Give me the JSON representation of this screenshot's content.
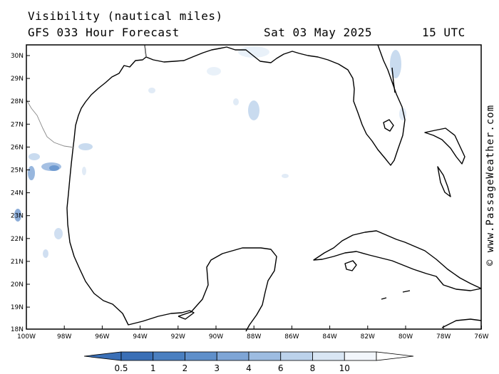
{
  "header": {
    "variable": "Visibility (nautical miles)",
    "forecast": "GFS 033 Hour Forecast",
    "date": "Sat 03 May 2025",
    "time": "15 UTC"
  },
  "credit": "© www.PassageWeather.com",
  "axes": {
    "lat_labels": [
      "30N",
      "29N",
      "28N",
      "27N",
      "26N",
      "25N",
      "24N",
      "23N",
      "22N",
      "21N",
      "20N",
      "19N",
      "18N"
    ],
    "lon_labels": [
      "100W",
      "98W",
      "96W",
      "94W",
      "92W",
      "90W",
      "88W",
      "86W",
      "84W",
      "82W",
      "80W",
      "78W",
      "76W"
    ]
  },
  "colorbar": {
    "labels": [
      "0.5",
      "1",
      "2",
      "3",
      "4",
      "6",
      "8",
      "10"
    ],
    "colors": [
      "#3a6fb6",
      "#4a7fc0",
      "#5f8fca",
      "#7ea5d6",
      "#9dbce1",
      "#bcd2eb",
      "#d9e6f4",
      "#f2f6fb"
    ]
  },
  "land_color": "#000000",
  "water_color": "#ffffff"
}
